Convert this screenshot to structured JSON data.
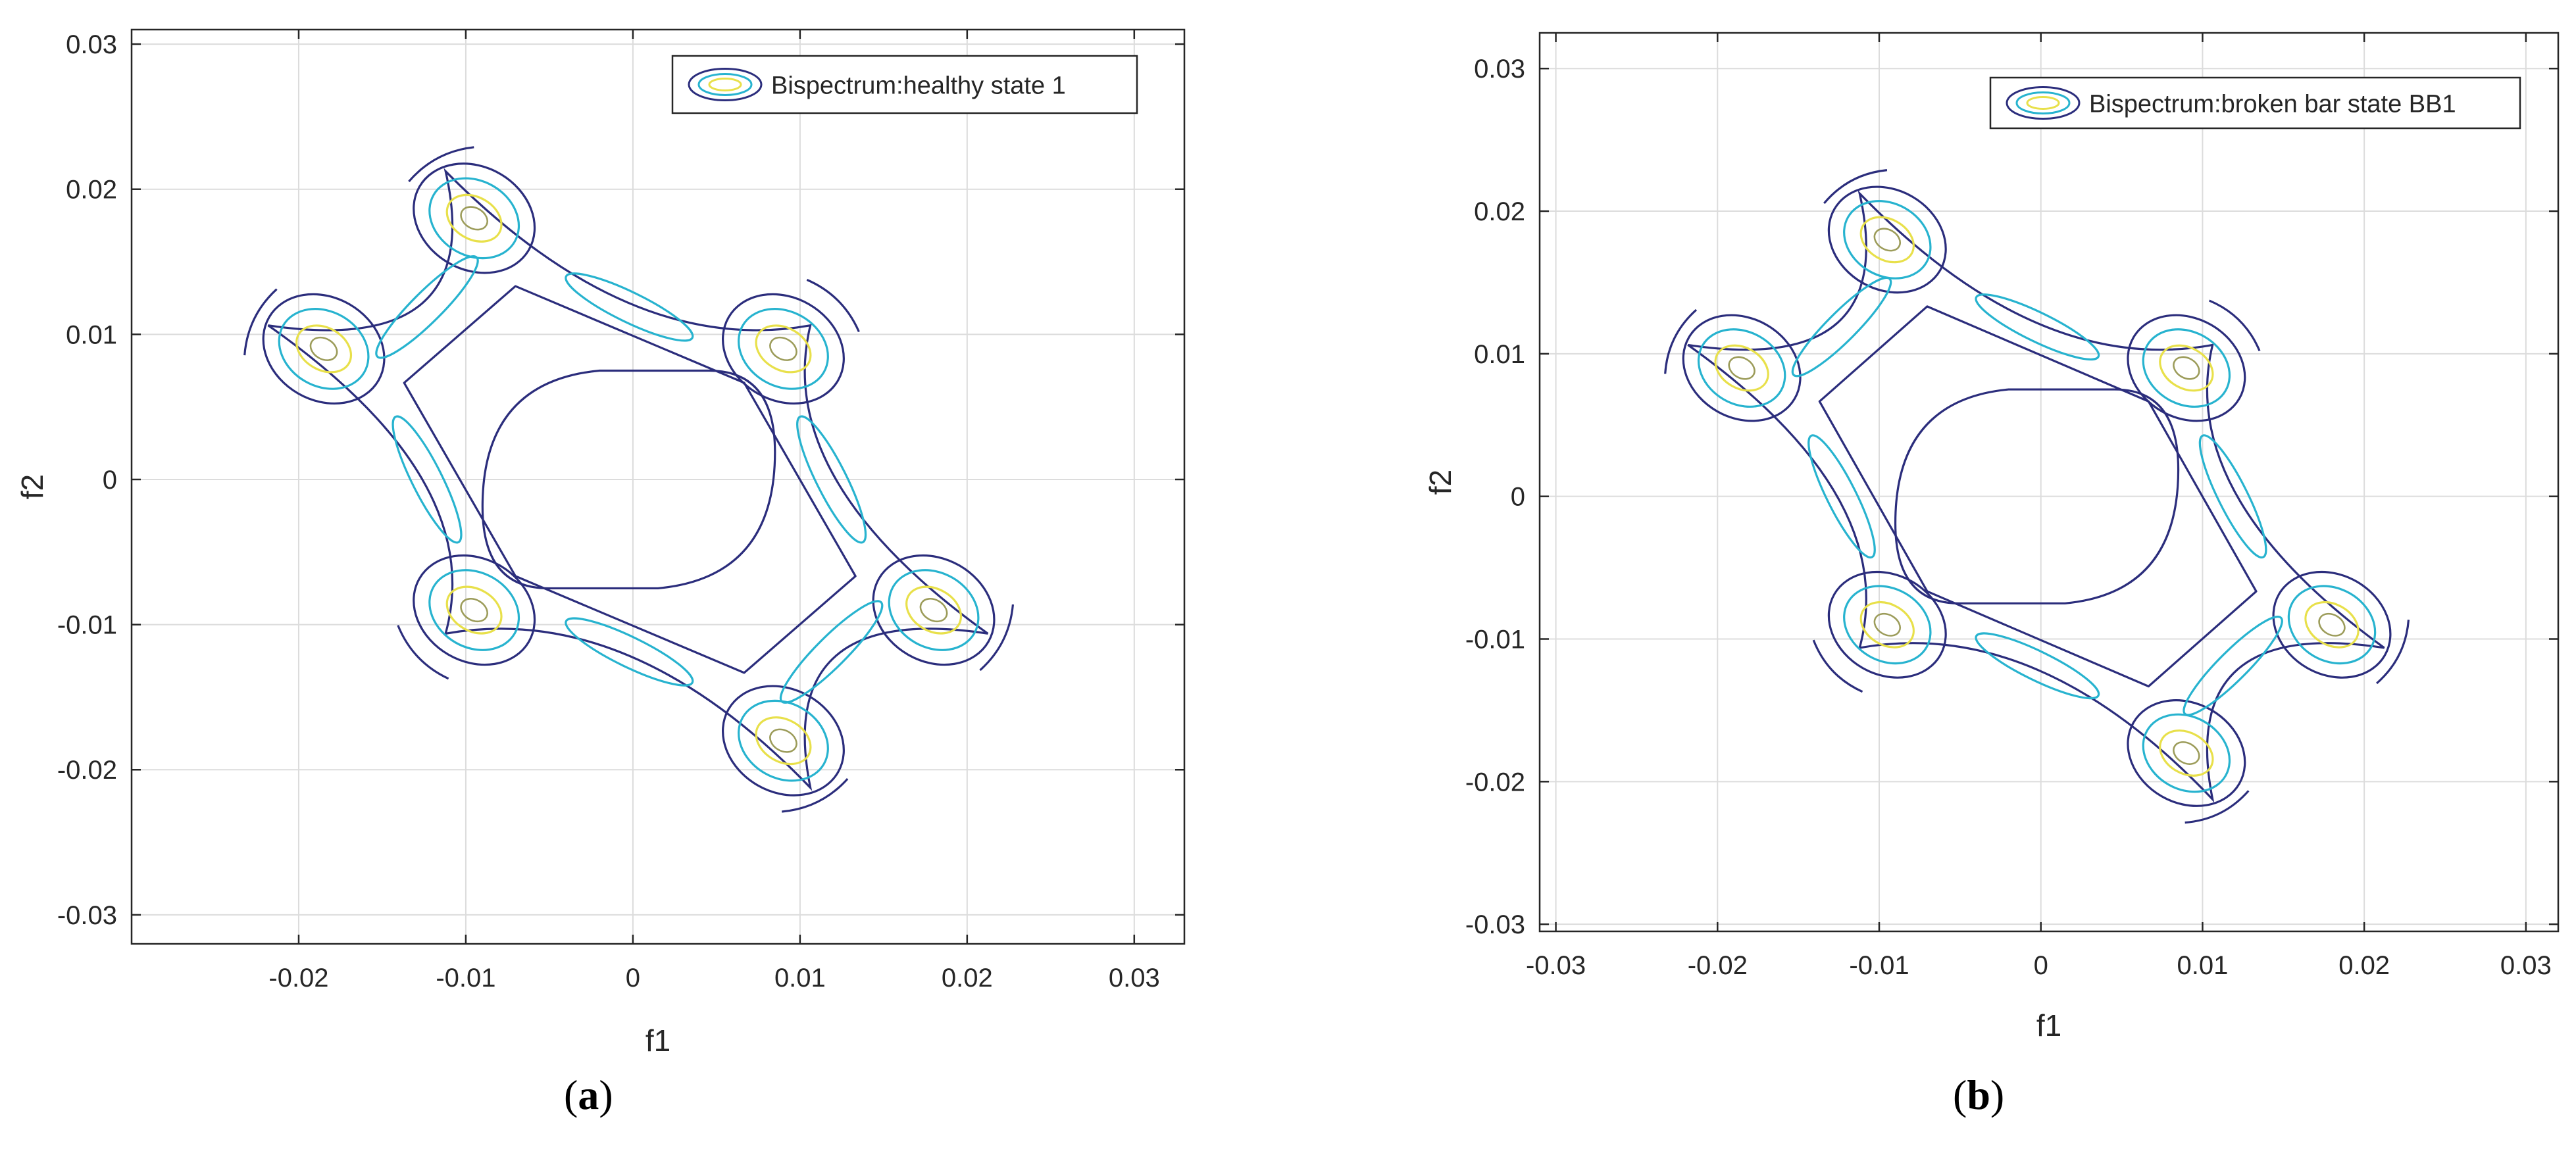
{
  "chart_data": [
    {
      "type": "contour",
      "panel_label": "a",
      "legend": "Bispectrum:healthy state 1",
      "legend_placement": "top-right",
      "grid": true,
      "xlabel": "f1",
      "ylabel": "f2",
      "xlim": [
        -0.03,
        0.033
      ],
      "ylim": [
        -0.032,
        0.031
      ],
      "xticks": [
        -0.02,
        -0.01,
        0,
        0.01,
        0.02,
        0.03
      ],
      "xtick_labels": [
        "-0.02",
        "-0.01",
        "0",
        "0.01",
        "0.02",
        "0.03"
      ],
      "yticks": [
        -0.03,
        -0.02,
        -0.01,
        0,
        0.01,
        0.02,
        0.03
      ],
      "ytick_labels": [
        "-0.03",
        "-0.02",
        "-0.01",
        "0",
        "0.01",
        "0.02",
        "0.03"
      ],
      "levels": [
        "#2b2d7c",
        "#27b3cf",
        "#e8e04a",
        "#9c9c5a"
      ],
      "peaks": [
        [
          -0.0185,
          0.009
        ],
        [
          -0.0095,
          0.018
        ],
        [
          0.009,
          0.009
        ],
        [
          -0.0095,
          -0.009
        ],
        [
          0.018,
          -0.009
        ],
        [
          0.009,
          -0.018
        ]
      ],
      "inner_extent": {
        "f1": [
          -0.009,
          0.0085
        ],
        "f2": [
          -0.0075,
          0.0075
        ]
      }
    },
    {
      "type": "contour",
      "panel_label": "b",
      "legend": "Bispectrum:broken bar state BB1",
      "legend_placement": "top-right",
      "grid": true,
      "xlabel": "f1",
      "ylabel": "f2",
      "xlim": [
        -0.031,
        0.032
      ],
      "ylim": [
        -0.0305,
        0.0325
      ],
      "xticks": [
        -0.03,
        -0.02,
        -0.01,
        0,
        0.01,
        0.02,
        0.03
      ],
      "xtick_labels": [
        "-0.03",
        "-0.02",
        "-0.01",
        "0",
        "0.01",
        "0.02",
        "0.03"
      ],
      "yticks": [
        -0.03,
        -0.02,
        -0.01,
        0,
        0.01,
        0.02,
        0.03
      ],
      "ytick_labels": [
        "-0.03",
        "-0.02",
        "-0.01",
        "0",
        "0.01",
        "0.02",
        "0.03"
      ],
      "levels": [
        "#2b2d7c",
        "#27b3cf",
        "#e8e04a",
        "#9c9c5a"
      ],
      "peaks": [
        [
          -0.0185,
          0.009
        ],
        [
          -0.0095,
          0.018
        ],
        [
          0.009,
          0.009
        ],
        [
          -0.0095,
          -0.009
        ],
        [
          0.018,
          -0.009
        ],
        [
          0.009,
          -0.018
        ]
      ],
      "inner_extent": {
        "f1": [
          -0.009,
          0.0085
        ],
        "f2": [
          -0.0075,
          0.0075
        ]
      }
    }
  ],
  "captions": [
    "(a)",
    "(b)"
  ]
}
